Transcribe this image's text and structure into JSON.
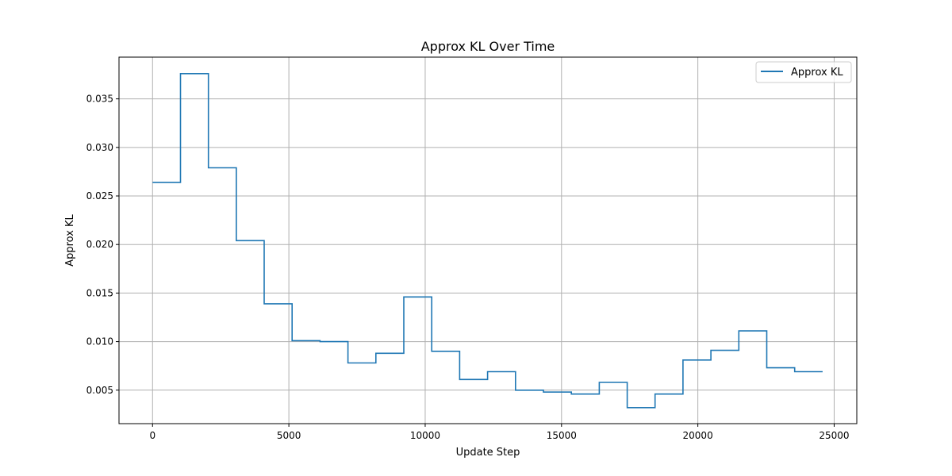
{
  "chart_data": {
    "type": "line",
    "step": "post",
    "title": "Approx KL Over Time",
    "xlabel": "Update Step",
    "ylabel": "Approx KL",
    "xlim": [
      -1230,
      25830
    ],
    "ylim": [
      0.00155,
      0.0393
    ],
    "xticks": [
      0,
      5000,
      10000,
      15000,
      20000,
      25000
    ],
    "xtick_labels": [
      "0",
      "5000",
      "10000",
      "15000",
      "20000",
      "25000"
    ],
    "yticks": [
      0.005,
      0.01,
      0.015,
      0.02,
      0.025,
      0.03,
      0.035
    ],
    "ytick_labels": [
      "0.005",
      "0.010",
      "0.015",
      "0.020",
      "0.025",
      "0.030",
      "0.035"
    ],
    "grid": true,
    "legend_position": "top-right",
    "series": [
      {
        "name": "Approx KL",
        "color": "#1f77b4",
        "x": [
          0,
          1024,
          2048,
          3072,
          4096,
          5120,
          6144,
          7168,
          8192,
          9216,
          10240,
          11264,
          12288,
          13312,
          14336,
          15360,
          16384,
          17408,
          18432,
          19456,
          20480,
          21504,
          22528,
          23552,
          24576
        ],
        "y": [
          0.0264,
          0.0376,
          0.0279,
          0.0204,
          0.0139,
          0.0101,
          0.01,
          0.0078,
          0.0088,
          0.0146,
          0.009,
          0.0061,
          0.0069,
          0.005,
          0.0048,
          0.0046,
          0.0058,
          0.0032,
          0.0046,
          0.0081,
          0.0091,
          0.0111,
          0.0073,
          0.0069,
          0.0069
        ]
      }
    ]
  }
}
